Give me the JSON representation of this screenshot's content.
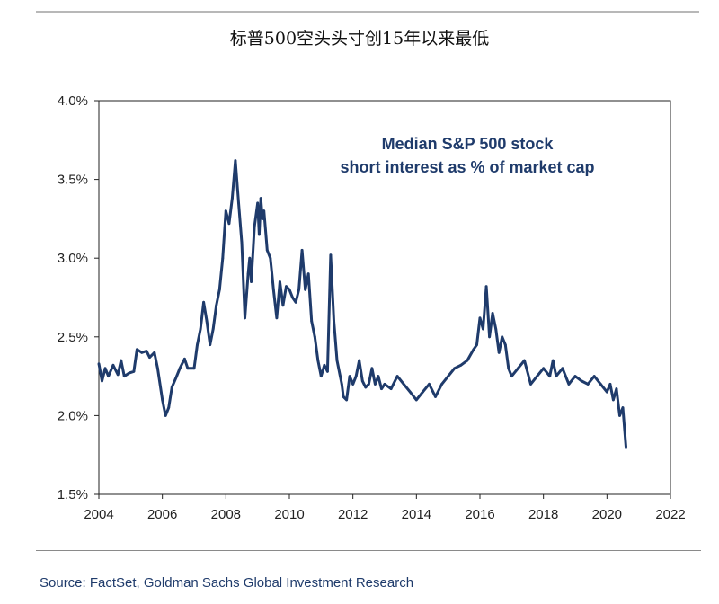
{
  "page": {
    "title": "标普500空头头寸创15年以来最低",
    "source": "Source: FactSet, Goldman Sachs Global Investment Research"
  },
  "chart_data": {
    "type": "line",
    "title": "",
    "annotation": [
      "Median S&P 500 stock",
      "short interest as % of market cap"
    ],
    "xlabel": "",
    "ylabel": "",
    "xlim": [
      2004,
      2022
    ],
    "ylim": [
      1.5,
      4.0
    ],
    "x_ticks": [
      2004,
      2006,
      2008,
      2010,
      2012,
      2014,
      2016,
      2018,
      2020,
      2022
    ],
    "y_ticks": [
      1.5,
      2.0,
      2.5,
      3.0,
      3.5,
      4.0
    ],
    "x_tick_labels": [
      "2004",
      "2006",
      "2008",
      "2010",
      "2012",
      "2014",
      "2016",
      "2018",
      "2020",
      "2022"
    ],
    "y_tick_labels": [
      "1.5%",
      "2.0%",
      "2.5%",
      "3.0%",
      "3.5%",
      "4.0%"
    ],
    "grid": false,
    "line_color": "#1f3b6b",
    "series": [
      {
        "x": [
          2004.0,
          2004.1,
          2004.2,
          2004.3,
          2004.45,
          2004.6,
          2004.7,
          2004.8,
          2004.95,
          2005.1,
          2005.2,
          2005.35,
          2005.5,
          2005.6,
          2005.75,
          2005.85,
          2006.0,
          2006.1,
          2006.2,
          2006.3,
          2006.45,
          2006.55,
          2006.7,
          2006.8,
          2006.9,
          2007.0,
          2007.1,
          2007.2,
          2007.3,
          2007.4,
          2007.5,
          2007.6,
          2007.7,
          2007.8,
          2007.9,
          2008.0,
          2008.1,
          2008.2,
          2008.3,
          2008.4,
          2008.5,
          2008.6,
          2008.7,
          2008.75,
          2008.8,
          2008.9,
          2009.0,
          2009.05,
          2009.1,
          2009.15,
          2009.2,
          2009.3,
          2009.4,
          2009.45,
          2009.5,
          2009.6,
          2009.7,
          2009.8,
          2009.9,
          2010.0,
          2010.1,
          2010.2,
          2010.3,
          2010.4,
          2010.5,
          2010.6,
          2010.7,
          2010.8,
          2010.9,
          2011.0,
          2011.1,
          2011.2,
          2011.3,
          2011.4,
          2011.5,
          2011.6,
          2011.65,
          2011.7,
          2011.8,
          2011.9,
          2012.0,
          2012.1,
          2012.2,
          2012.3,
          2012.4,
          2012.5,
          2012.6,
          2012.7,
          2012.8,
          2012.9,
          2013.0,
          2013.2,
          2013.4,
          2013.6,
          2013.8,
          2014.0,
          2014.2,
          2014.4,
          2014.6,
          2014.8,
          2015.0,
          2015.2,
          2015.4,
          2015.6,
          2015.8,
          2015.9,
          2016.0,
          2016.1,
          2016.2,
          2016.3,
          2016.4,
          2016.5,
          2016.6,
          2016.7,
          2016.8,
          2016.9,
          2017.0,
          2017.2,
          2017.4,
          2017.6,
          2017.8,
          2018.0,
          2018.2,
          2018.3,
          2018.4,
          2018.6,
          2018.8,
          2019.0,
          2019.2,
          2019.4,
          2019.6,
          2019.8,
          2020.0,
          2020.1,
          2020.2,
          2020.3,
          2020.4,
          2020.5,
          2020.6
        ],
        "y": [
          2.33,
          2.22,
          2.3,
          2.25,
          2.32,
          2.26,
          2.35,
          2.25,
          2.27,
          2.28,
          2.42,
          2.4,
          2.41,
          2.37,
          2.4,
          2.3,
          2.1,
          2.0,
          2.05,
          2.18,
          2.25,
          2.3,
          2.36,
          2.3,
          2.3,
          2.3,
          2.45,
          2.55,
          2.72,
          2.6,
          2.45,
          2.55,
          2.7,
          2.8,
          3.0,
          3.3,
          3.22,
          3.38,
          3.62,
          3.35,
          3.1,
          2.62,
          2.9,
          3.0,
          2.85,
          3.2,
          3.35,
          3.15,
          3.38,
          3.25,
          3.3,
          3.05,
          3.0,
          2.9,
          2.8,
          2.62,
          2.85,
          2.7,
          2.82,
          2.8,
          2.75,
          2.72,
          2.8,
          3.05,
          2.8,
          2.9,
          2.6,
          2.5,
          2.35,
          2.25,
          2.32,
          2.28,
          3.02,
          2.6,
          2.35,
          2.25,
          2.2,
          2.12,
          2.1,
          2.25,
          2.2,
          2.25,
          2.35,
          2.22,
          2.18,
          2.2,
          2.3,
          2.2,
          2.25,
          2.17,
          2.2,
          2.17,
          2.25,
          2.2,
          2.15,
          2.1,
          2.15,
          2.2,
          2.12,
          2.2,
          2.25,
          2.3,
          2.32,
          2.35,
          2.42,
          2.45,
          2.62,
          2.55,
          2.82,
          2.5,
          2.65,
          2.55,
          2.4,
          2.5,
          2.45,
          2.3,
          2.25,
          2.3,
          2.35,
          2.2,
          2.25,
          2.3,
          2.25,
          2.35,
          2.25,
          2.3,
          2.2,
          2.25,
          2.22,
          2.2,
          2.25,
          2.2,
          2.15,
          2.2,
          2.1,
          2.17,
          2.0,
          2.05,
          1.8
        ]
      }
    ]
  }
}
